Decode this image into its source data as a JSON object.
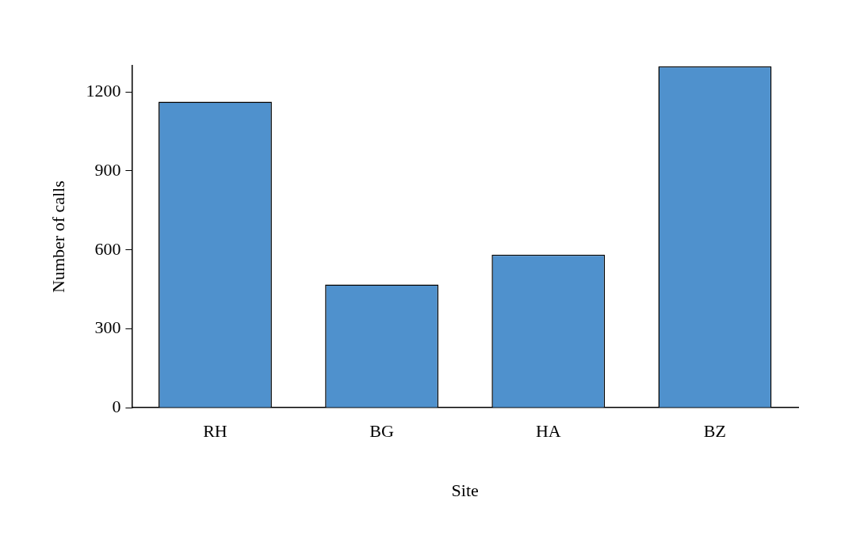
{
  "chart_data": {
    "type": "bar",
    "xlabel": "Site",
    "ylabel": "Number of calls",
    "categories": [
      "RH",
      "BG",
      "HA",
      "BZ"
    ],
    "values": [
      1163,
      468,
      582,
      1298
    ],
    "color": "#4f91cd",
    "ylim": [
      0,
      1300
    ],
    "yticks": [
      0,
      300,
      600,
      900,
      1200
    ],
    "grid": false,
    "legend": false
  }
}
